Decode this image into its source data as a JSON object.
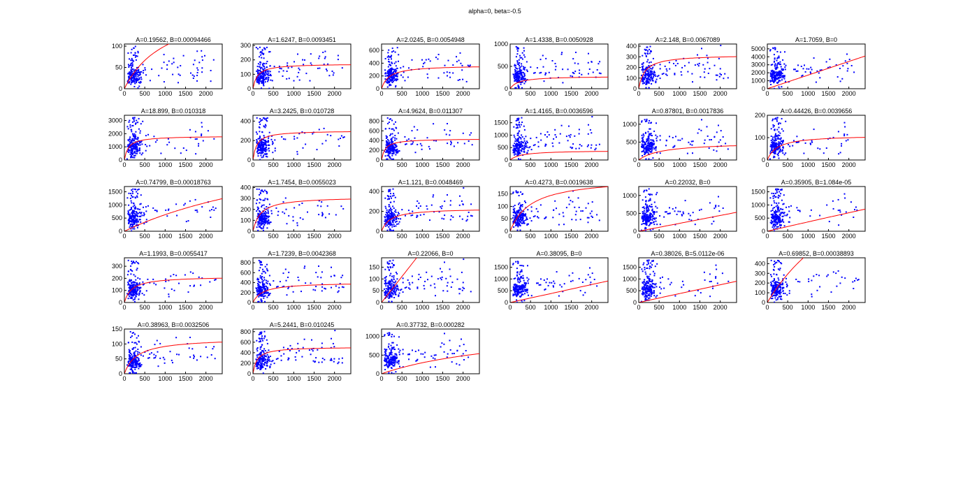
{
  "figure_title": "alpha=0, beta=-0.5",
  "colors": {
    "points": "#0000ff",
    "fit": "#ff0000",
    "axes": "#000000"
  },
  "chart_data": [
    {
      "type": "scatter",
      "title": "A=0.19562, B=0.00094466",
      "xlim": [
        0,
        2400
      ],
      "ylim": [
        0,
        105
      ],
      "xticks": [
        0,
        500,
        1000,
        1500,
        2000
      ],
      "xtick_labels": [
        "0",
        "500",
        "1000",
        "1500",
        "2000"
      ],
      "yticks": [
        0,
        50,
        100
      ],
      "ytick_labels": [
        "0",
        "50",
        "100"
      ]
    },
    {
      "type": "scatter",
      "title": "A=1.6247, B=0.0093451",
      "xlim": [
        0,
        2400
      ],
      "ylim": [
        0,
        310
      ],
      "xticks": [
        0,
        500,
        1000,
        1500,
        2000
      ],
      "xtick_labels": [
        "0",
        "500",
        "1000",
        "1500",
        "2000"
      ],
      "yticks": [
        0,
        100,
        200,
        300
      ],
      "ytick_labels": [
        "0",
        "100",
        "200",
        "300"
      ]
    },
    {
      "type": "scatter",
      "title": "A=2.0245, B=0.0054948",
      "xlim": [
        0,
        2400
      ],
      "ylim": [
        0,
        700
      ],
      "xticks": [
        0,
        500,
        1000,
        1500,
        2000
      ],
      "xtick_labels": [
        "0",
        "500",
        "1000",
        "1500",
        "2000"
      ],
      "yticks": [
        0,
        200,
        400,
        600
      ],
      "ytick_labels": [
        "0",
        "200",
        "400",
        "600"
      ]
    },
    {
      "type": "scatter",
      "title": "A=1.4338, B=0.0050928",
      "xlim": [
        0,
        2400
      ],
      "ylim": [
        0,
        1000
      ],
      "xticks": [
        0,
        500,
        1000,
        1500,
        2000
      ],
      "xtick_labels": [
        "0",
        "500",
        "1000",
        "1500",
        "2000"
      ],
      "yticks": [
        0,
        500,
        1000
      ],
      "ytick_labels": [
        "0",
        "500",
        "1000"
      ]
    },
    {
      "type": "scatter",
      "title": "A=2.148, B=0.0067089",
      "xlim": [
        0,
        2400
      ],
      "ylim": [
        0,
        420
      ],
      "xticks": [
        0,
        500,
        1000,
        1500,
        2000
      ],
      "xtick_labels": [
        "0",
        "500",
        "1000",
        "1500",
        "2000"
      ],
      "yticks": [
        0,
        100,
        200,
        300,
        400
      ],
      "ytick_labels": [
        "0",
        "100",
        "200",
        "300",
        "400"
      ]
    },
    {
      "type": "scatter",
      "title": "A=1.7059, B=0",
      "xlim": [
        0,
        2400
      ],
      "ylim": [
        0,
        5600
      ],
      "xticks": [
        0,
        500,
        1000,
        1500,
        2000
      ],
      "xtick_labels": [
        "0",
        "500",
        "1000",
        "1500",
        "2000"
      ],
      "yticks": [
        0,
        1000,
        2000,
        3000,
        4000,
        5000
      ],
      "ytick_labels": [
        "0",
        "1000",
        "2000",
        "3000",
        "4000",
        "5000"
      ]
    },
    {
      "type": "scatter",
      "title": "A=18.899, B=0.010318",
      "xlim": [
        0,
        2400
      ],
      "ylim": [
        0,
        3400
      ],
      "xticks": [
        0,
        500,
        1000,
        1500,
        2000
      ],
      "xtick_labels": [
        "0",
        "500",
        "1000",
        "1500",
        "2000"
      ],
      "yticks": [
        0,
        1000,
        2000,
        3000
      ],
      "ytick_labels": [
        "0",
        "1000",
        "2000",
        "3000"
      ]
    },
    {
      "type": "scatter",
      "title": "A=3.2425, B=0.010728",
      "xlim": [
        0,
        2400
      ],
      "ylim": [
        0,
        460
      ],
      "xticks": [
        0,
        500,
        1000,
        1500,
        2000
      ],
      "xtick_labels": [
        "0",
        "500",
        "1000",
        "1500",
        "2000"
      ],
      "yticks": [
        0,
        200,
        400
      ],
      "ytick_labels": [
        "0",
        "200",
        "400"
      ]
    },
    {
      "type": "scatter",
      "title": "A=4.9624, B=0.011307",
      "xlim": [
        0,
        2400
      ],
      "ylim": [
        0,
        920
      ],
      "xticks": [
        0,
        500,
        1000,
        1500,
        2000
      ],
      "xtick_labels": [
        "0",
        "500",
        "1000",
        "1500",
        "2000"
      ],
      "yticks": [
        0,
        200,
        400,
        600,
        800
      ],
      "ytick_labels": [
        "0",
        "200",
        "400",
        "600",
        "800"
      ]
    },
    {
      "type": "scatter",
      "title": "A=1.4165, B=0.0036596",
      "xlim": [
        0,
        2400
      ],
      "ylim": [
        0,
        1800
      ],
      "xticks": [
        0,
        500,
        1000,
        1500,
        2000
      ],
      "xtick_labels": [
        "0",
        "500",
        "1000",
        "1500",
        "2000"
      ],
      "yticks": [
        0,
        500,
        1000,
        1500
      ],
      "ytick_labels": [
        "0",
        "500",
        "1000",
        "1500"
      ]
    },
    {
      "type": "scatter",
      "title": "A=0.87801, B=0.0017836",
      "xlim": [
        0,
        2400
      ],
      "ylim": [
        0,
        1250
      ],
      "xticks": [
        0,
        500,
        1000,
        1500,
        2000
      ],
      "xtick_labels": [
        "0",
        "500",
        "1000",
        "1500",
        "2000"
      ],
      "yticks": [
        0,
        500,
        1000
      ],
      "ytick_labels": [
        "0",
        "500",
        "1000"
      ]
    },
    {
      "type": "scatter",
      "title": "A=0.44426, B=0.0039656",
      "xlim": [
        0,
        2400
      ],
      "ylim": [
        0,
        200
      ],
      "xticks": [
        0,
        500,
        1000,
        1500,
        2000
      ],
      "xtick_labels": [
        "0",
        "500",
        "1000",
        "1500",
        "2000"
      ],
      "yticks": [
        0,
        100,
        200
      ],
      "ytick_labels": [
        "0",
        "100",
        "200"
      ]
    },
    {
      "type": "scatter",
      "title": "A=0.74799, B=0.00018763",
      "xlim": [
        0,
        2400
      ],
      "ylim": [
        0,
        1700
      ],
      "xticks": [
        0,
        500,
        1000,
        1500,
        2000
      ],
      "xtick_labels": [
        "0",
        "500",
        "1000",
        "1500",
        "2000"
      ],
      "yticks": [
        0,
        500,
        1000,
        1500
      ],
      "ytick_labels": [
        "0",
        "500",
        "1000",
        "1500"
      ]
    },
    {
      "type": "scatter",
      "title": "A=1.7454, B=0.0055023",
      "xlim": [
        0,
        2400
      ],
      "ylim": [
        0,
        410
      ],
      "xticks": [
        0,
        500,
        1000,
        1500,
        2000
      ],
      "xtick_labels": [
        "0",
        "500",
        "1000",
        "1500",
        "2000"
      ],
      "yticks": [
        0,
        100,
        200,
        300,
        400
      ],
      "ytick_labels": [
        "0",
        "100",
        "200",
        "300",
        "400"
      ]
    },
    {
      "type": "scatter",
      "title": "A=1.121, B=0.0048469",
      "xlim": [
        0,
        2400
      ],
      "ylim": [
        0,
        450
      ],
      "xticks": [
        0,
        500,
        1000,
        1500,
        2000
      ],
      "xtick_labels": [
        "0",
        "500",
        "1000",
        "1500",
        "2000"
      ],
      "yticks": [
        0,
        200,
        400
      ],
      "ytick_labels": [
        "0",
        "200",
        "400"
      ]
    },
    {
      "type": "scatter",
      "title": "A=0.4273, B=0.0019638",
      "xlim": [
        0,
        2400
      ],
      "ylim": [
        0,
        180
      ],
      "xticks": [
        0,
        500,
        1000,
        1500,
        2000
      ],
      "xtick_labels": [
        "0",
        "500",
        "1000",
        "1500",
        "2000"
      ],
      "yticks": [
        0,
        50,
        100,
        150
      ],
      "ytick_labels": [
        "0",
        "50",
        "100",
        "150"
      ]
    },
    {
      "type": "scatter",
      "title": "A=0.22032, B=0",
      "xlim": [
        0,
        2400
      ],
      "ylim": [
        0,
        1250
      ],
      "xticks": [
        0,
        500,
        1000,
        1500,
        2000
      ],
      "xtick_labels": [
        "0",
        "500",
        "1000",
        "1500",
        "2000"
      ],
      "yticks": [
        0,
        500,
        1000
      ],
      "ytick_labels": [
        "0",
        "500",
        "1000"
      ]
    },
    {
      "type": "scatter",
      "title": "A=0.35905, B=1.084e-05",
      "xlim": [
        0,
        2400
      ],
      "ylim": [
        0,
        1700
      ],
      "xticks": [
        0,
        500,
        1000,
        1500,
        2000
      ],
      "xtick_labels": [
        "0",
        "500",
        "1000",
        "1500",
        "2000"
      ],
      "yticks": [
        0,
        500,
        1000,
        1500
      ],
      "ytick_labels": [
        "0",
        "500",
        "1000",
        "1500"
      ]
    },
    {
      "type": "scatter",
      "title": "A=1.1993, B=0.0055417",
      "xlim": [
        0,
        2400
      ],
      "ylim": [
        0,
        370
      ],
      "xticks": [
        0,
        500,
        1000,
        1500,
        2000
      ],
      "xtick_labels": [
        "0",
        "500",
        "1000",
        "1500",
        "2000"
      ],
      "yticks": [
        0,
        100,
        200,
        300
      ],
      "ytick_labels": [
        "0",
        "100",
        "200",
        "300"
      ]
    },
    {
      "type": "scatter",
      "title": "A=1.7239, B=0.0042368",
      "xlim": [
        0,
        2400
      ],
      "ylim": [
        0,
        900
      ],
      "xticks": [
        0,
        500,
        1000,
        1500,
        2000
      ],
      "xtick_labels": [
        "0",
        "500",
        "1000",
        "1500",
        "2000"
      ],
      "yticks": [
        0,
        200,
        400,
        600,
        800
      ],
      "ytick_labels": [
        "0",
        "200",
        "400",
        "600",
        "800"
      ]
    },
    {
      "type": "scatter",
      "title": "A=0.22066, B=0",
      "xlim": [
        0,
        2400
      ],
      "ylim": [
        0,
        190
      ],
      "xticks": [
        0,
        500,
        1000,
        1500,
        2000
      ],
      "xtick_labels": [
        "0",
        "500",
        "1000",
        "1500",
        "2000"
      ],
      "yticks": [
        0,
        50,
        100,
        150
      ],
      "ytick_labels": [
        "0",
        "50",
        "100",
        "150"
      ]
    },
    {
      "type": "scatter",
      "title": "A=0.38095, B=0",
      "xlim": [
        0,
        2400
      ],
      "ylim": [
        0,
        1900
      ],
      "xticks": [
        0,
        500,
        1000,
        1500,
        2000
      ],
      "xtick_labels": [
        "0",
        "500",
        "1000",
        "1500",
        "2000"
      ],
      "yticks": [
        0,
        500,
        1000,
        1500
      ],
      "ytick_labels": [
        "0",
        "500",
        "1000",
        "1500"
      ]
    },
    {
      "type": "scatter",
      "title": "A=0.38026, B=5.0112e-06",
      "xlim": [
        0,
        2400
      ],
      "ylim": [
        0,
        1900
      ],
      "xticks": [
        0,
        500,
        1000,
        1500,
        2000
      ],
      "xtick_labels": [
        "0",
        "500",
        "1000",
        "1500",
        "2000"
      ],
      "yticks": [
        0,
        500,
        1000,
        1500
      ],
      "ytick_labels": [
        "0",
        "500",
        "1000",
        "1500"
      ]
    },
    {
      "type": "scatter",
      "title": "A=0.69852, B=0.00038893",
      "xlim": [
        0,
        2400
      ],
      "ylim": [
        0,
        460
      ],
      "xticks": [
        0,
        500,
        1000,
        1500,
        2000
      ],
      "xtick_labels": [
        "0",
        "500",
        "1000",
        "1500",
        "2000"
      ],
      "yticks": [
        0,
        100,
        200,
        300,
        400
      ],
      "ytick_labels": [
        "0",
        "100",
        "200",
        "300",
        "400"
      ]
    },
    {
      "type": "scatter",
      "title": "A=0.38963, B=0.0032506",
      "xlim": [
        0,
        2400
      ],
      "ylim": [
        0,
        150
      ],
      "xticks": [
        0,
        500,
        1000,
        1500,
        2000
      ],
      "xtick_labels": [
        "0",
        "500",
        "1000",
        "1500",
        "2000"
      ],
      "yticks": [
        0,
        50,
        100,
        150
      ],
      "ytick_labels": [
        "0",
        "50",
        "100",
        "150"
      ]
    },
    {
      "type": "scatter",
      "title": "A=5.2441, B=0.010245",
      "xlim": [
        0,
        2400
      ],
      "ylim": [
        0,
        850
      ],
      "xticks": [
        0,
        500,
        1000,
        1500,
        2000
      ],
      "xtick_labels": [
        "0",
        "500",
        "1000",
        "1500",
        "2000"
      ],
      "yticks": [
        0,
        200,
        400,
        600,
        800
      ],
      "ytick_labels": [
        "0",
        "200",
        "400",
        "600",
        "800"
      ]
    },
    {
      "type": "scatter",
      "title": "A=0.37732, B=0.000282",
      "xlim": [
        0,
        2400
      ],
      "ylim": [
        0,
        1200
      ],
      "xticks": [
        0,
        500,
        1000,
        1500,
        2000
      ],
      "xtick_labels": [
        "0",
        "500",
        "1000",
        "1500",
        "2000"
      ],
      "yticks": [
        0,
        500,
        1000
      ],
      "ytick_labels": [
        "0",
        "500",
        "1000"
      ]
    }
  ]
}
